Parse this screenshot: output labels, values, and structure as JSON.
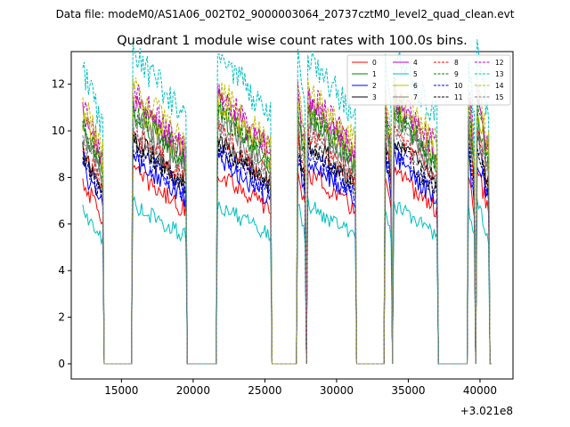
{
  "figure": {
    "suptitle": "Data file: modeM0/AS1A06_002T02_9000003064_20737cztM0_level2_quad_clean.evt",
    "offset_label": "+3.021e8"
  },
  "chart_data": {
    "type": "line",
    "title": "Quadrant 1 module wise count rates with 100.0s bins.",
    "xlabel": "",
    "ylabel": "",
    "x_offset": 302100000,
    "xlim": [
      11500,
      42300
    ],
    "ylim": [
      -0.65,
      13.4
    ],
    "xticks": [
      15000,
      20000,
      25000,
      30000,
      35000,
      40000
    ],
    "xtick_labels": [
      "15000",
      "20000",
      "25000",
      "30000",
      "35000",
      "40000"
    ],
    "yticks": [
      0,
      2,
      4,
      6,
      8,
      10,
      12
    ],
    "ytick_labels": [
      "0",
      "2",
      "4",
      "6",
      "8",
      "10",
      "12"
    ],
    "legend_position": "top-right",
    "on_segments": [
      [
        12300,
        13700
      ],
      [
        15800,
        19500
      ],
      [
        21700,
        25400
      ],
      [
        27300,
        27800
      ],
      [
        28000,
        31300
      ],
      [
        33400,
        33800
      ],
      [
        34000,
        37000
      ],
      [
        39200,
        39600
      ],
      [
        39800,
        40600
      ]
    ],
    "series": [
      {
        "name": "0",
        "color": "#ff0000",
        "dash": "solid",
        "level": 7.0
      },
      {
        "name": "1",
        "color": "#008000",
        "dash": "solid",
        "level": 9.1
      },
      {
        "name": "2",
        "color": "#0000ff",
        "dash": "solid",
        "level": 7.5
      },
      {
        "name": "3",
        "color": "#000000",
        "dash": "solid",
        "level": 8.2
      },
      {
        "name": "4",
        "color": "#bf00bf",
        "dash": "solid",
        "level": 9.6
      },
      {
        "name": "5",
        "color": "#00bfbf",
        "dash": "solid",
        "level": 5.8
      },
      {
        "name": "6",
        "color": "#bfbf00",
        "dash": "solid",
        "level": 9.4
      },
      {
        "name": "7",
        "color": "#808080",
        "dash": "solid",
        "level": 8.9
      },
      {
        "name": "8",
        "color": "#ff0000",
        "dash": "dashed",
        "level": 8.4
      },
      {
        "name": "9",
        "color": "#008000",
        "dash": "dashed",
        "level": 9.3
      },
      {
        "name": "10",
        "color": "#0000ff",
        "dash": "dashed",
        "level": 7.8
      },
      {
        "name": "11",
        "color": "#000000",
        "dash": "dashed",
        "level": 8.0
      },
      {
        "name": "12",
        "color": "#bf00bf",
        "dash": "dashed",
        "level": 9.9
      },
      {
        "name": "13",
        "color": "#00bfbf",
        "dash": "dashed",
        "level": 11.3
      },
      {
        "name": "14",
        "color": "#bfbf00",
        "dash": "dashed",
        "level": 10.1
      },
      {
        "name": "15",
        "color": "#808080",
        "dash": "dashed",
        "level": 8.6
      }
    ]
  }
}
